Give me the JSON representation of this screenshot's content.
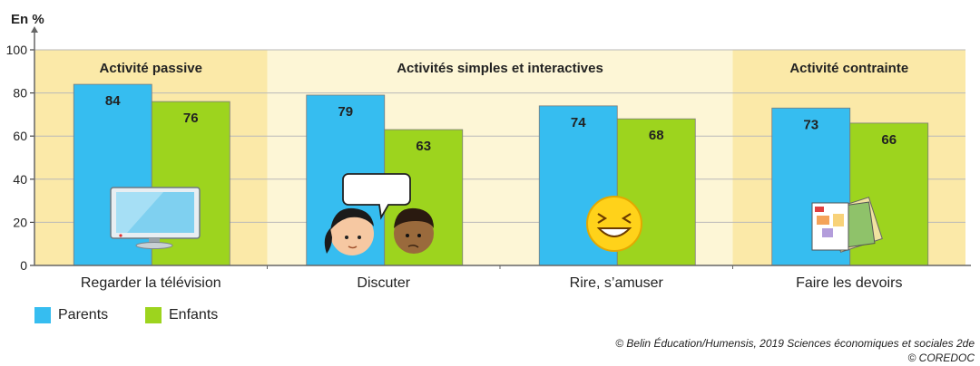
{
  "chart_data": {
    "type": "bar",
    "y_unit_label": "En %",
    "ylim": [
      0,
      100
    ],
    "y_ticks": [
      0,
      20,
      40,
      60,
      80,
      100
    ],
    "grid": true,
    "categories": [
      "Regarder la télévision",
      "Discuter",
      "Rire, s’amuser",
      "Faire les devoirs"
    ],
    "groups": [
      {
        "label": "Activité passive",
        "categories": [
          0
        ],
        "color": "#fbe9a8"
      },
      {
        "label": "Activités simples et interactives",
        "categories": [
          1,
          2
        ],
        "color": "#fdf6d6"
      },
      {
        "label": "Activité contrainte",
        "categories": [
          3
        ],
        "color": "#fbe9a8"
      }
    ],
    "series": [
      {
        "name": "Parents",
        "color": "#36bdf0",
        "values": [
          84,
          79,
          74,
          73
        ]
      },
      {
        "name": "Enfants",
        "color": "#9dd41e",
        "values": [
          76,
          63,
          68,
          66
        ]
      }
    ],
    "legend_position": "bottom-left"
  },
  "credits": {
    "line1": "© Belin Éducation/Humensis, 2019 Sciences économiques et sociales 2de",
    "line2": "© COREDOC"
  }
}
